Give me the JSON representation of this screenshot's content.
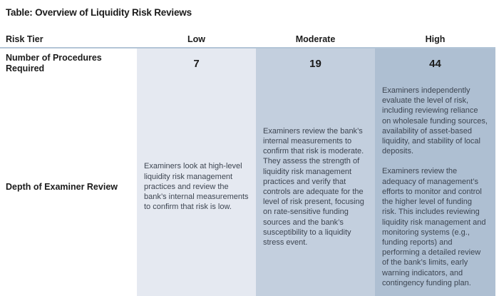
{
  "title": "Table: Overview of Liquidity Risk Reviews",
  "table": {
    "header": {
      "risk_tier": "Risk Tier",
      "columns": [
        "Low",
        "Moderate",
        "High"
      ]
    },
    "rows": [
      {
        "label": "Number of Procedures Required",
        "values": {
          "low": "7",
          "moderate": "19",
          "high": "44"
        }
      },
      {
        "label": "Depth of Examiner Review",
        "low": "Examiners look at high-level liquidity risk management practices and review the bank’s internal measurements to confirm that risk is low.",
        "moderate": "Examiners review the bank’s internal measurements to confirm that risk is moderate. They assess the strength of liquidity risk management practices and verify that controls are adequate for the level of risk present, focusing on rate-sensitive funding sources and the bank’s susceptibility to a liquidity stress event.",
        "high": [
          "Examiners independently evaluate the level of risk, including reviewing reliance on wholesale funding sources, availability of asset-based liquidity, and stability of local deposits.",
          "Examiners review the adequacy of management’s efforts to monitor and control the higher level of funding risk. This includes reviewing liquidity risk management and monitoring systems (e.g., funding reports) and performing a detailed review of the bank’s limits, early warning indicators, and contingency funding plan."
        ]
      }
    ]
  },
  "colors": {
    "low_bg": "#e5e9f1",
    "moderate_bg": "#c3cfde",
    "high_bg": "#aebfd2",
    "header_rule": "#b3c5d7",
    "heading_text": "#1b1b1b",
    "body_text": "#3d4551"
  }
}
